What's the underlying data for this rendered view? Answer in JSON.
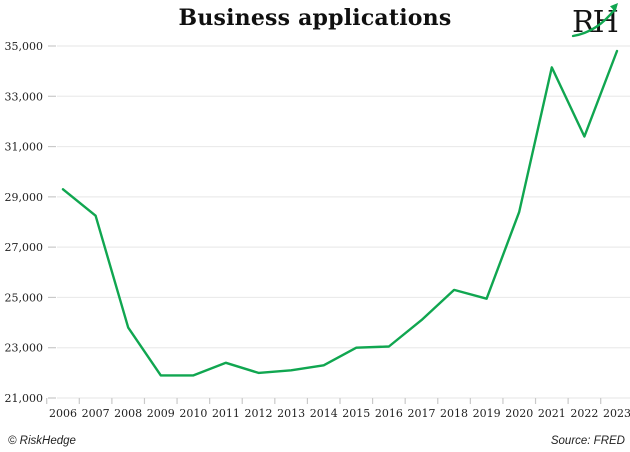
{
  "header": {
    "title": "Business applications",
    "logo_text": "RH"
  },
  "footer": {
    "copyright": "© RiskHedge",
    "source": "Source: FRED"
  },
  "colors": {
    "line": "#10a650",
    "grid": "#ebebeb",
    "tick": "#c9c9c9",
    "axis_text": "#1f1f1f",
    "logo_green": "#10a650"
  },
  "chart_data": {
    "type": "line",
    "title": "Business applications",
    "xlabel": "",
    "ylabel": "",
    "x": [
      2006,
      2007,
      2008,
      2009,
      2010,
      2011,
      2012,
      2013,
      2014,
      2015,
      2016,
      2017,
      2018,
      2019,
      2020,
      2021,
      2022,
      2023
    ],
    "series": [
      {
        "name": "Business applications",
        "values": [
          29300,
          28250,
          23800,
          21900,
          21900,
          22400,
          22000,
          22100,
          22300,
          23000,
          23050,
          24100,
          25300,
          24950,
          28400,
          34150,
          31400,
          34800
        ]
      }
    ],
    "ylim": [
      21000,
      35000
    ],
    "yticks": [
      21000,
      23000,
      25000,
      27000,
      29000,
      31000,
      33000,
      35000
    ],
    "grid": "horizontal",
    "legend": "none",
    "source": "FRED"
  }
}
